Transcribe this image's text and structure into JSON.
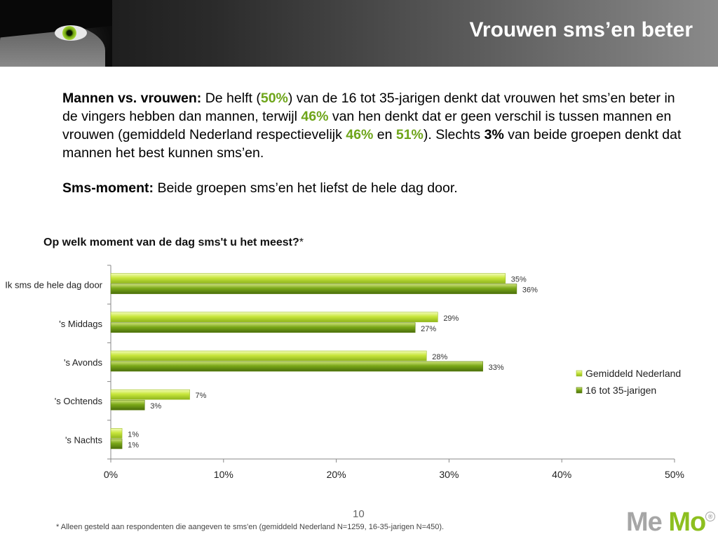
{
  "header": {
    "title": "Vrouwen sms’en beter"
  },
  "paragraph1": {
    "lead": "Mannen vs. vrouwen:",
    "t1": " De helft (",
    "v1": "50%",
    "t2": ") van de 16 tot 35-jarigen denkt dat vrouwen het sms’en beter in de vingers hebben dan mannen, terwijl ",
    "v2": "46%",
    "t3": " van hen denkt dat er geen verschil is tussen mannen en vrouwen (gemiddeld Nederland respectievelijk ",
    "v3": "46%",
    "t4": " en ",
    "v4": "51%",
    "t5": "). Slechts ",
    "v5": "3%",
    "t6": " van beide groepen denkt dat mannen het best kunnen sms’en."
  },
  "paragraph2": {
    "lead": "Sms-moment:",
    "text": " Beide groepen sms’en het liefst de hele dag door."
  },
  "chart_title": {
    "text": "Op welk moment van de dag sms't u het meest?",
    "star": "*"
  },
  "chart_data": {
    "type": "bar",
    "orientation": "horizontal",
    "title": "Op welk moment van de dag sms't u het meest?*",
    "categories": [
      "Ik sms de hele dag door",
      "'s Middags",
      "'s Avonds",
      "'s Ochtends",
      "'s Nachts"
    ],
    "series": [
      {
        "name": "Gemiddeld Nederland",
        "values": [
          35,
          29,
          28,
          7,
          1
        ],
        "color": "#c8e63c"
      },
      {
        "name": "16 tot 35-jarigen",
        "values": [
          36,
          27,
          33,
          3,
          1
        ],
        "color": "#7aa818"
      }
    ],
    "value_labels": [
      [
        "35%",
        "29%",
        "28%",
        "7%",
        "1%"
      ],
      [
        "36%",
        "27%",
        "33%",
        "3%",
        "1%"
      ]
    ],
    "x_ticks": [
      0,
      10,
      20,
      30,
      40,
      50
    ],
    "x_tick_labels": [
      "0%",
      "10%",
      "20%",
      "30%",
      "40%",
      "50%"
    ],
    "xlim": [
      0,
      50
    ],
    "grid": false,
    "legend": "right"
  },
  "footnote": "* Alleen gesteld aan respondenten die aangeven te sms'en (gemiddeld Nederland N=1259, 16-35-jarigen N=450).",
  "page_number": "10",
  "logo": {
    "me": "Me",
    "mo": "Mo",
    "reg": "®"
  }
}
